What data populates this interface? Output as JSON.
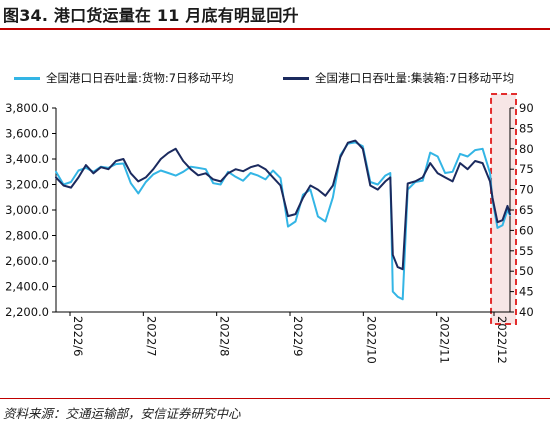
{
  "header": {
    "title": "图34. 港口货运量在 11 月底有明显回升"
  },
  "footer": {
    "source": "资料来源：交通运输部，安信证券研究中心"
  },
  "colors": {
    "cargo": "#33b5e5",
    "container": "#1b2a5e",
    "highlight_border": "#e32d2d",
    "highlight_fill": "#f4dcdc",
    "title_rule": "#c00000"
  },
  "chart_data": {
    "type": "line",
    "x_ticks": [
      "2022/6",
      "2022/7",
      "2022/8",
      "2022/9",
      "2022/10",
      "2022/11",
      "2022/12"
    ],
    "x_range": [
      0,
      182
    ],
    "y_left": {
      "min": 2200,
      "max": 3800,
      "step": 200,
      "tick_labels": [
        "2,200.0",
        "2,400.0",
        "2,600.0",
        "2,800.0",
        "3,000.0",
        "3,200.0",
        "3,400.0",
        "3,600.0",
        "3,800.0"
      ]
    },
    "y_right": {
      "min": 40,
      "max": 90,
      "step": 5,
      "tick_labels": [
        "40",
        "45",
        "50",
        "55",
        "60",
        "65",
        "70",
        "75",
        "80",
        "85",
        "90"
      ]
    },
    "highlight": {
      "x_start": 176,
      "x_end": 182
    },
    "series": [
      {
        "name": "全国港口日吞吐量:货物:7日移动平均",
        "axis": "left",
        "points": [
          [
            0,
            3300
          ],
          [
            3,
            3200
          ],
          [
            6,
            3220
          ],
          [
            9,
            3310
          ],
          [
            12,
            3330
          ],
          [
            15,
            3300
          ],
          [
            18,
            3340
          ],
          [
            21,
            3330
          ],
          [
            24,
            3360
          ],
          [
            27,
            3365
          ],
          [
            30,
            3210
          ],
          [
            33,
            3130
          ],
          [
            36,
            3220
          ],
          [
            39,
            3280
          ],
          [
            42,
            3310
          ],
          [
            45,
            3290
          ],
          [
            48,
            3270
          ],
          [
            51,
            3300
          ],
          [
            54,
            3340
          ],
          [
            57,
            3330
          ],
          [
            60,
            3320
          ],
          [
            63,
            3210
          ],
          [
            66,
            3200
          ],
          [
            69,
            3300
          ],
          [
            72,
            3260
          ],
          [
            75,
            3230
          ],
          [
            78,
            3290
          ],
          [
            81,
            3270
          ],
          [
            84,
            3240
          ],
          [
            87,
            3310
          ],
          [
            90,
            3250
          ],
          [
            93,
            2870
          ],
          [
            96,
            2910
          ],
          [
            99,
            3120
          ],
          [
            102,
            3160
          ],
          [
            105,
            2950
          ],
          [
            108,
            2910
          ],
          [
            111,
            3100
          ],
          [
            114,
            3430
          ],
          [
            117,
            3520
          ],
          [
            120,
            3530
          ],
          [
            123,
            3500
          ],
          [
            126,
            3220
          ],
          [
            129,
            3200
          ],
          [
            132,
            3270
          ],
          [
            134,
            3290
          ],
          [
            135,
            2360
          ],
          [
            137,
            2320
          ],
          [
            139,
            2300
          ],
          [
            141,
            3160
          ],
          [
            144,
            3220
          ],
          [
            147,
            3230
          ],
          [
            150,
            3450
          ],
          [
            153,
            3420
          ],
          [
            156,
            3290
          ],
          [
            159,
            3300
          ],
          [
            162,
            3440
          ],
          [
            165,
            3420
          ],
          [
            168,
            3470
          ],
          [
            171,
            3480
          ],
          [
            174,
            3290
          ],
          [
            175,
            3080
          ],
          [
            177,
            2860
          ],
          [
            179,
            2880
          ],
          [
            181,
            3000
          ],
          [
            182,
            2960
          ]
        ]
      },
      {
        "name": "全国港口日吞吐量:集装箱:7日移动平均",
        "axis": "right",
        "points": [
          [
            0,
            73
          ],
          [
            3,
            71
          ],
          [
            6,
            70.5
          ],
          [
            9,
            73
          ],
          [
            12,
            76
          ],
          [
            15,
            74
          ],
          [
            18,
            75.5
          ],
          [
            21,
            75
          ],
          [
            24,
            77
          ],
          [
            27,
            77.5
          ],
          [
            30,
            74
          ],
          [
            33,
            72
          ],
          [
            36,
            73
          ],
          [
            39,
            75
          ],
          [
            42,
            77.5
          ],
          [
            45,
            79
          ],
          [
            48,
            80
          ],
          [
            51,
            77
          ],
          [
            54,
            75
          ],
          [
            57,
            73.5
          ],
          [
            60,
            74
          ],
          [
            63,
            72.5
          ],
          [
            66,
            72
          ],
          [
            69,
            74
          ],
          [
            72,
            75
          ],
          [
            75,
            74.5
          ],
          [
            78,
            75.5
          ],
          [
            81,
            76
          ],
          [
            84,
            75
          ],
          [
            87,
            73
          ],
          [
            90,
            71
          ],
          [
            93,
            63.5
          ],
          [
            96,
            64
          ],
          [
            99,
            68
          ],
          [
            102,
            71
          ],
          [
            105,
            70
          ],
          [
            108,
            68.5
          ],
          [
            111,
            71
          ],
          [
            114,
            78
          ],
          [
            117,
            81.5
          ],
          [
            120,
            82
          ],
          [
            123,
            80
          ],
          [
            126,
            71
          ],
          [
            129,
            70
          ],
          [
            132,
            72
          ],
          [
            134,
            73
          ],
          [
            135,
            54
          ],
          [
            137,
            51
          ],
          [
            139,
            50.5
          ],
          [
            141,
            71.5
          ],
          [
            144,
            72
          ],
          [
            147,
            73
          ],
          [
            150,
            76.5
          ],
          [
            153,
            74
          ],
          [
            156,
            73
          ],
          [
            159,
            72
          ],
          [
            162,
            76.5
          ],
          [
            165,
            75
          ],
          [
            168,
            77
          ],
          [
            171,
            76.5
          ],
          [
            174,
            72
          ],
          [
            175,
            68
          ],
          [
            177,
            62
          ],
          [
            179,
            62.5
          ],
          [
            181,
            66
          ],
          [
            182,
            64
          ]
        ]
      }
    ],
    "legend_position": "top"
  }
}
